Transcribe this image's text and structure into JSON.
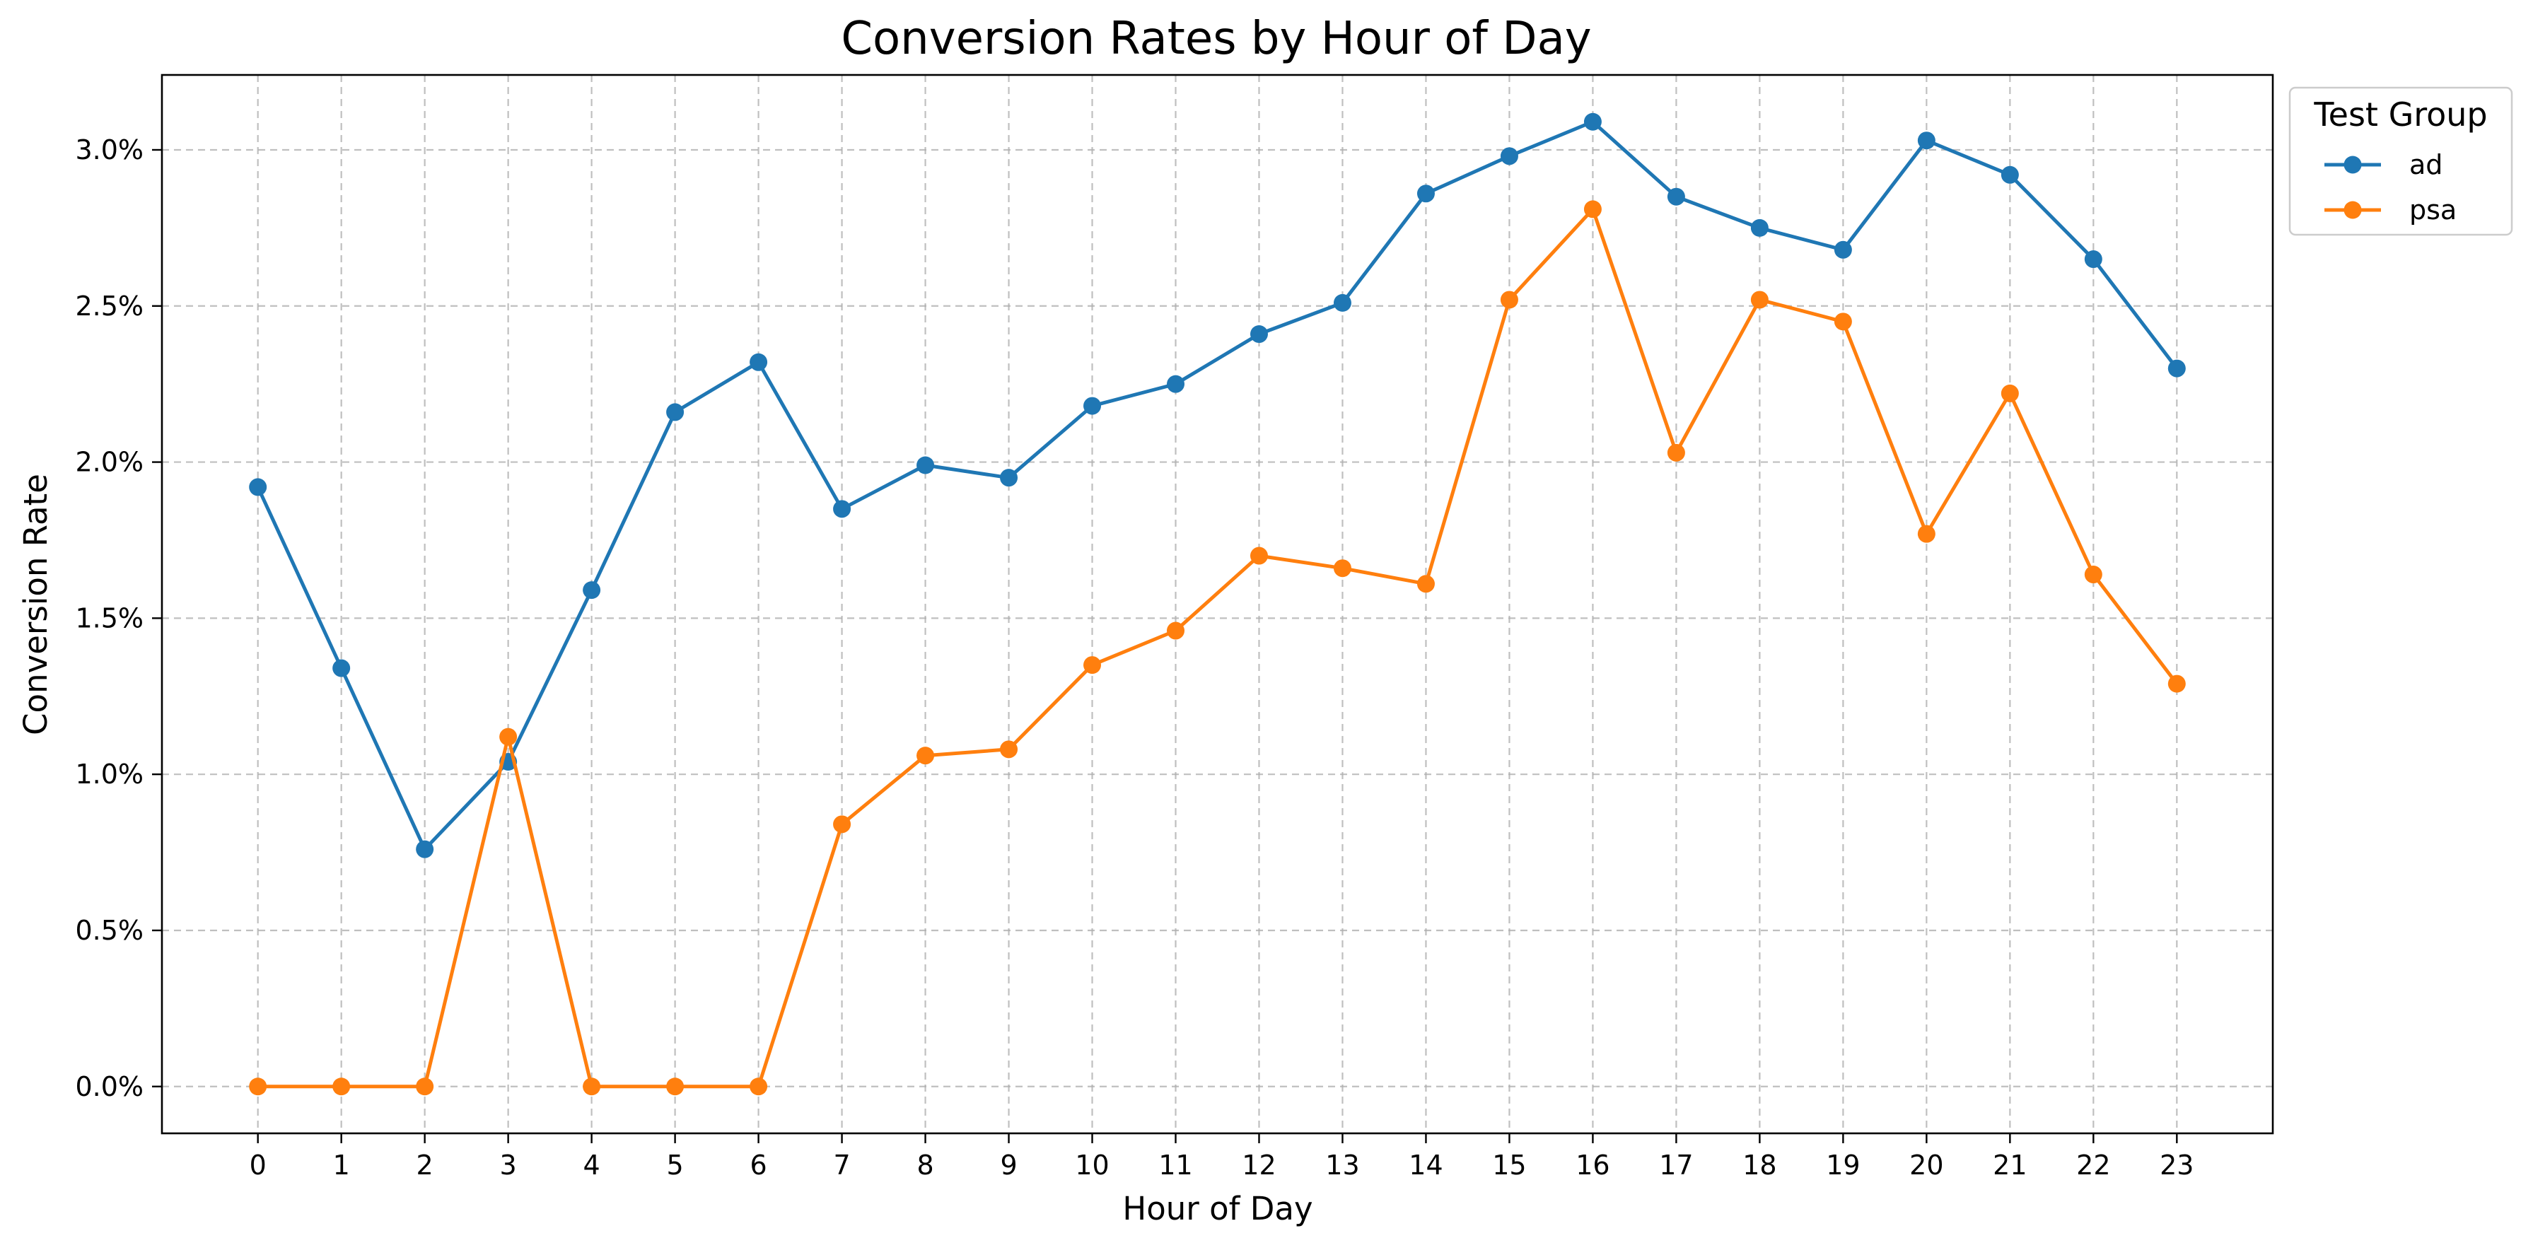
{
  "chart_data": {
    "type": "line",
    "title": "Conversion Rates by Hour of Day",
    "xlabel": "Hour of Day",
    "ylabel": "Conversion Rate",
    "x": [
      0,
      1,
      2,
      3,
      4,
      5,
      6,
      7,
      8,
      9,
      10,
      11,
      12,
      13,
      14,
      15,
      16,
      17,
      18,
      19,
      20,
      21,
      22,
      23
    ],
    "xlim": [
      -1.15,
      24.15
    ],
    "ylim": [
      -0.0015,
      0.0324
    ],
    "yticks": [
      0.0,
      0.005,
      0.01,
      0.015,
      0.02,
      0.025,
      0.03
    ],
    "ytick_labels": [
      "0.0%",
      "0.5%",
      "1.0%",
      "1.5%",
      "2.0%",
      "2.5%",
      "3.0%"
    ],
    "grid": true,
    "legend": {
      "title": "Test Group",
      "placement": "outside-top-right"
    },
    "series": [
      {
        "name": "ad",
        "color": "#1f77b4",
        "values": [
          0.0192,
          0.0134,
          0.0076,
          0.0104,
          0.0159,
          0.0216,
          0.0232,
          0.0185,
          0.0199,
          0.0195,
          0.0218,
          0.0225,
          0.0241,
          0.0251,
          0.0286,
          0.0298,
          0.0309,
          0.0285,
          0.0275,
          0.0268,
          0.0303,
          0.0292,
          0.0265,
          0.023
        ]
      },
      {
        "name": "psa",
        "color": "#ff7f0e",
        "values": [
          0.0,
          0.0,
          0.0,
          0.0112,
          0.0,
          0.0,
          0.0,
          0.0084,
          0.0106,
          0.0108,
          0.0135,
          0.0146,
          0.017,
          0.0166,
          0.0161,
          0.0252,
          0.0281,
          0.0203,
          0.0252,
          0.0245,
          0.0177,
          0.0222,
          0.0164,
          0.0129
        ]
      }
    ]
  }
}
